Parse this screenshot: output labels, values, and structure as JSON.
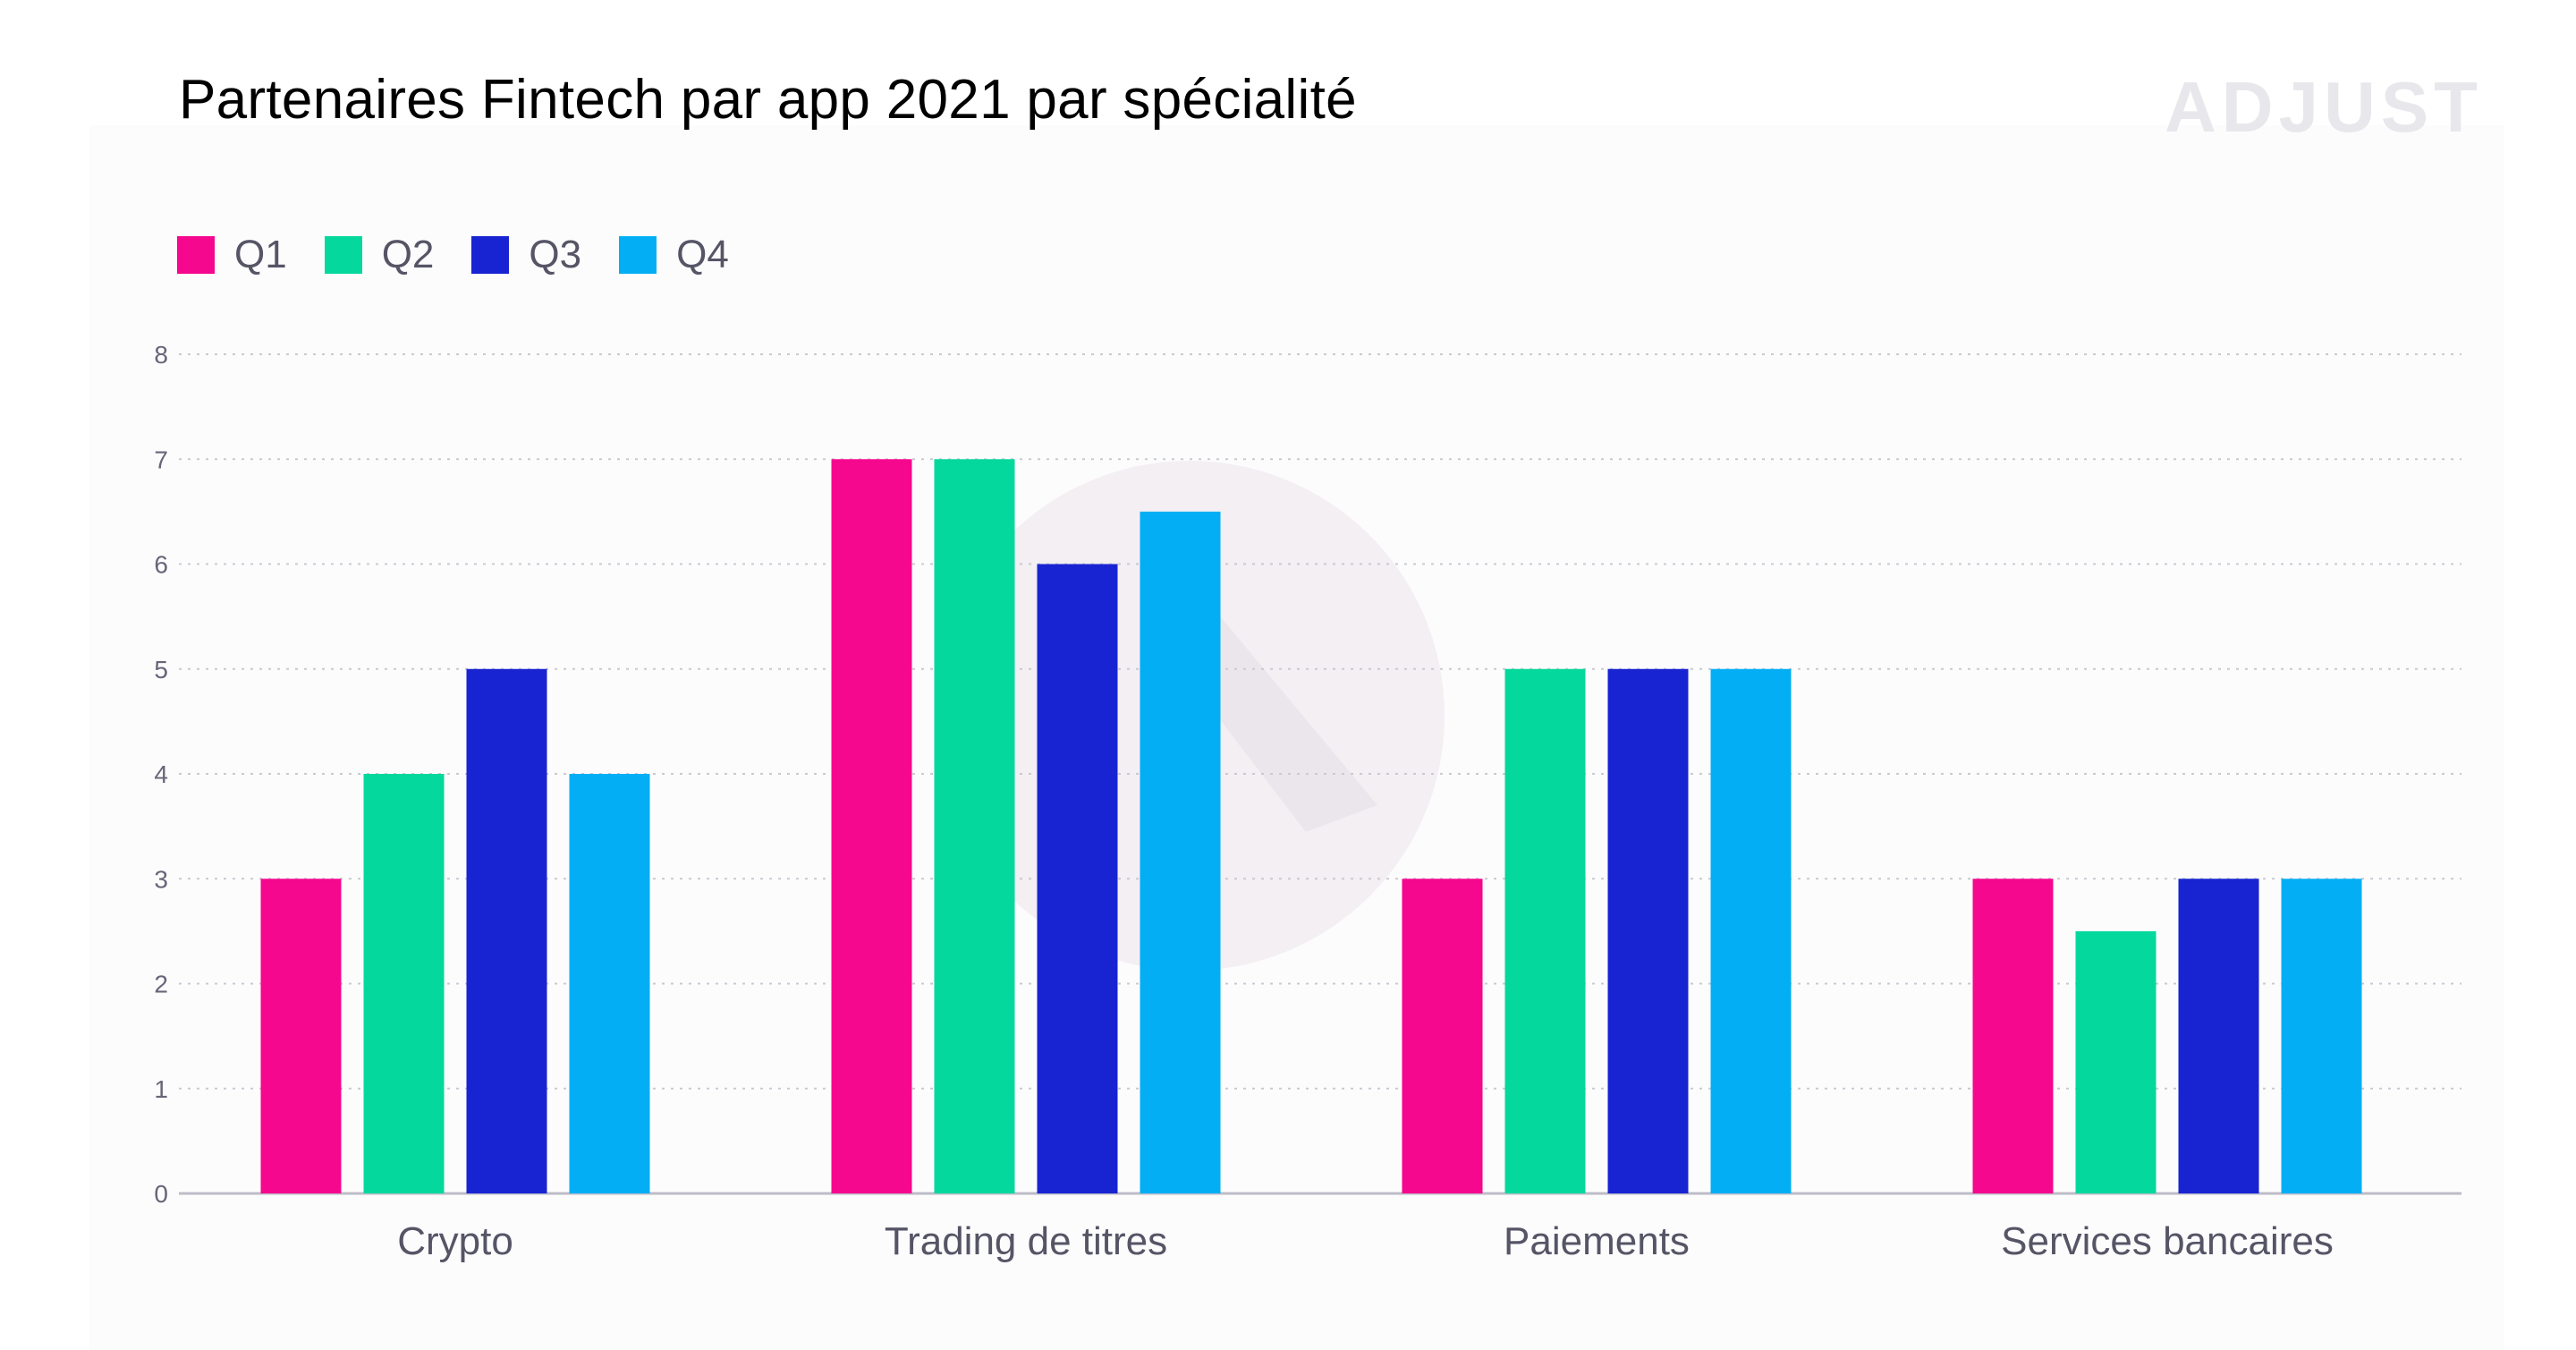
{
  "colors": {
    "Q1": "#f5078e",
    "Q2": "#05d89c",
    "Q3": "#1824d1",
    "Q4": "#04aef5",
    "grid": "#c9c9d2",
    "axis": "#bdbdc8",
    "watermark": "#f3eff3"
  },
  "brand_text": "ADJUST",
  "chart_data": {
    "type": "bar",
    "title": "Partenaires Fintech par app 2021 par spécialité",
    "xlabel": "",
    "ylabel": "",
    "categories": [
      "Crypto",
      "Trading de titres",
      "Paiements",
      "Services bancaires"
    ],
    "series": [
      {
        "name": "Q1",
        "values": [
          3,
          7,
          3,
          3
        ]
      },
      {
        "name": "Q2",
        "values": [
          4,
          7,
          5,
          2.5
        ]
      },
      {
        "name": "Q3",
        "values": [
          5,
          6,
          5,
          3
        ]
      },
      {
        "name": "Q4",
        "values": [
          4,
          6.5,
          5,
          3
        ]
      }
    ],
    "ylim": [
      0,
      8
    ],
    "yticks": [
      "0",
      "1",
      "2",
      "3",
      "4",
      "5",
      "6",
      "7",
      "8"
    ],
    "grid": true,
    "legend": "top-left"
  }
}
